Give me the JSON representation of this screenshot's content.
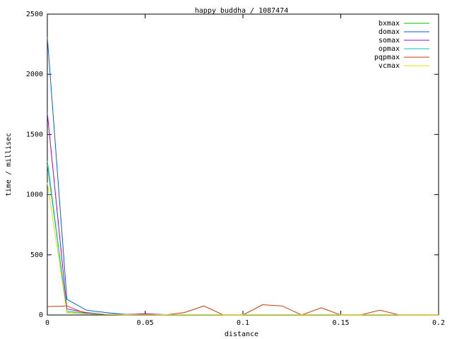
{
  "chart_data": {
    "type": "line",
    "title": "happy buddha / 1087474",
    "x_label": "distance",
    "y_label": "time / millisec",
    "x": [
      0,
      0.01,
      0.02,
      0.03,
      0.04,
      0.05,
      0.06,
      0.07,
      0.08,
      0.09,
      0.1,
      0.11,
      0.12,
      0.13,
      0.14,
      0.15,
      0.16,
      0.17,
      0.18,
      0.19,
      0.2
    ],
    "series": [
      {
        "name": "bxmax",
        "color": "#00c000",
        "values": [
          1280,
          20,
          10,
          5,
          3,
          3,
          2,
          2,
          2,
          2,
          2,
          2,
          2,
          2,
          2,
          2,
          2,
          2,
          2,
          2,
          2
        ]
      },
      {
        "name": "domax",
        "color": "#0060d0",
        "values": [
          2310,
          130,
          40,
          20,
          5,
          5,
          3,
          3,
          3,
          3,
          3,
          3,
          3,
          3,
          3,
          3,
          3,
          3,
          3,
          3,
          3
        ]
      },
      {
        "name": "somax",
        "color": "#a000c0",
        "values": [
          1680,
          50,
          20,
          5,
          3,
          10,
          3,
          3,
          3,
          3,
          3,
          3,
          3,
          3,
          3,
          3,
          3,
          3,
          3,
          3,
          3
        ]
      },
      {
        "name": "opmax",
        "color": "#00c0c0",
        "values": [
          1250,
          30,
          15,
          5,
          3,
          3,
          3,
          3,
          3,
          3,
          3,
          3,
          3,
          3,
          3,
          3,
          3,
          3,
          3,
          3,
          3
        ]
      },
      {
        "name": "pqpmax",
        "color": "#c04000",
        "values": [
          70,
          75,
          10,
          5,
          0,
          5,
          0,
          20,
          75,
          0,
          0,
          85,
          75,
          0,
          60,
          0,
          0,
          40,
          0,
          0,
          0
        ]
      },
      {
        "name": "vcmax",
        "color": "#e0e000",
        "values": [
          1100,
          20,
          10,
          5,
          2,
          2,
          2,
          2,
          2,
          2,
          2,
          2,
          2,
          2,
          2,
          2,
          2,
          2,
          2,
          2,
          2
        ]
      }
    ],
    "xlim": [
      0,
      0.2
    ],
    "xticks": [
      0,
      0.05,
      0.1,
      0.15,
      0.2
    ],
    "ylim": [
      0,
      2500
    ],
    "yticks": [
      0,
      500,
      1000,
      1500,
      2000,
      2500
    ],
    "grid": false,
    "legend": "top-right"
  }
}
